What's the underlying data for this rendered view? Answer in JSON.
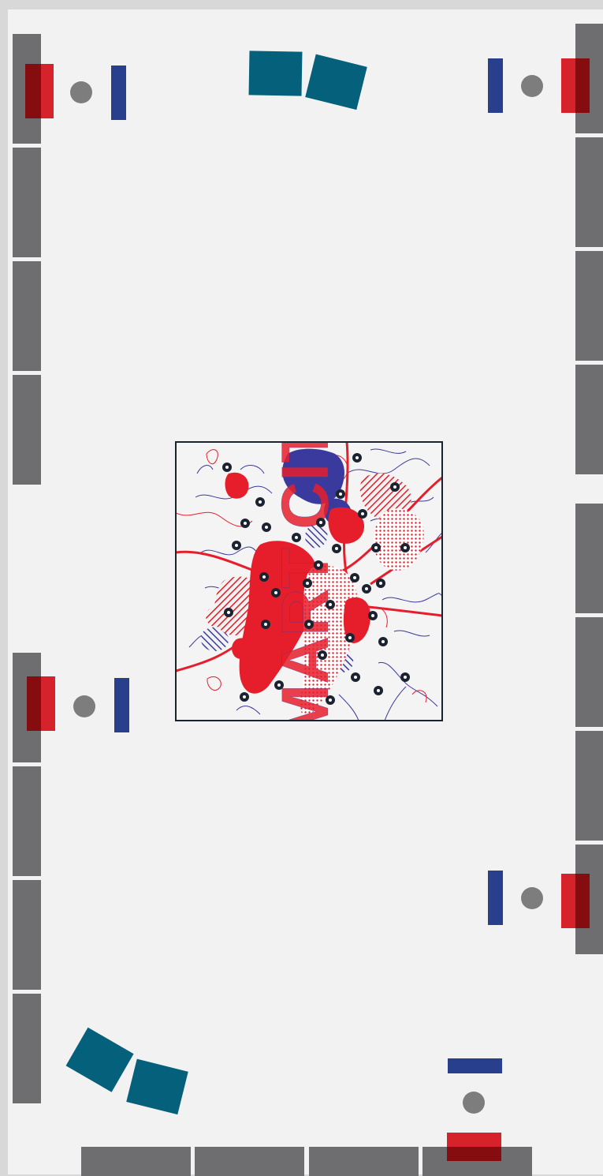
{
  "room": {
    "colors": {
      "floor": "#f2f2f2",
      "frame": "#d8d8d8",
      "wall_panel": "#6e6d70",
      "blue_chair": "#273f8c",
      "red_chair": "#d6222b",
      "red_chair_dark": "#6b0707",
      "stool": "#7d7d7d",
      "teal_seat": "#05607b",
      "map_border": "#1b2230",
      "map_red": "#e61e2b",
      "map_blue": "#3a3a9e",
      "map_marker": "#1b2230"
    },
    "artwork": {
      "label": "SMART CITY",
      "marker_icon": "pin-icon"
    },
    "stations": [
      {
        "name": "station-top-left"
      },
      {
        "name": "station-top-right"
      },
      {
        "name": "station-mid-left"
      },
      {
        "name": "station-lower-right"
      },
      {
        "name": "station-bottom"
      }
    ],
    "lounge_seats": [
      {
        "name": "lounge-top"
      },
      {
        "name": "lounge-bottom"
      }
    ]
  }
}
